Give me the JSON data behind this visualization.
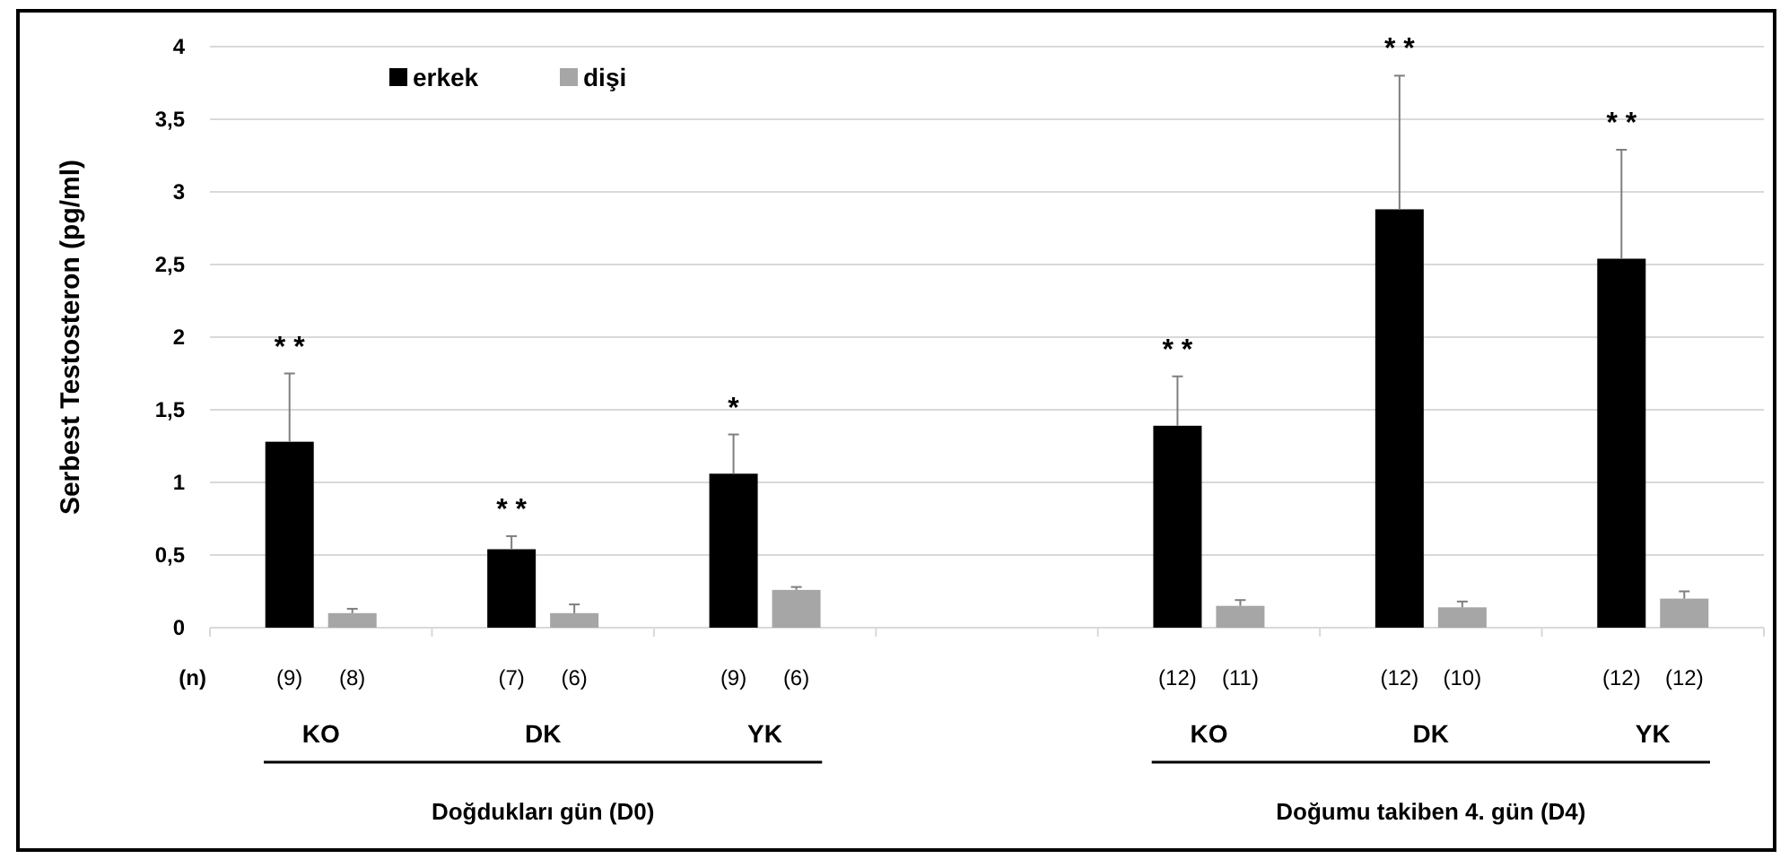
{
  "chart_data": {
    "type": "bar",
    "ylabel": "Serbest Testosteron (pg/ml)",
    "categories": [
      "KO",
      "DK",
      "YK",
      null,
      "KO",
      "DK",
      "YK"
    ],
    "series": [
      {
        "name": "erkek",
        "color": "#000000",
        "values": [
          1.28,
          0.54,
          1.06,
          null,
          1.39,
          2.88,
          2.54
        ],
        "errors": [
          [
            1.28,
            1.75
          ],
          [
            0.54,
            0.63
          ],
          [
            1.06,
            1.33
          ],
          null,
          [
            1.39,
            1.73
          ],
          [
            2.88,
            3.8
          ],
          [
            2.54,
            3.29
          ]
        ]
      },
      {
        "name": "dişi",
        "color": "#a6a6a6",
        "values": [
          0.1,
          0.1,
          0.26,
          null,
          0.15,
          0.14,
          0.2
        ],
        "errors": [
          [
            0.1,
            0.13
          ],
          [
            0.1,
            0.16
          ],
          [
            0.26,
            0.28
          ],
          null,
          [
            0.15,
            0.19
          ],
          [
            0.14,
            0.18
          ],
          [
            0.2,
            0.25
          ]
        ]
      }
    ],
    "ylim": [
      0,
      4
    ],
    "yticks": [
      0,
      {
        "value": 0.5,
        "label": "0,5"
      },
      1,
      {
        "value": 1.5,
        "label": "1,5"
      },
      2,
      {
        "value": 2.5,
        "label": "2,5"
      },
      3,
      {
        "value": 3.5,
        "label": "3,5"
      },
      4
    ],
    "grid": "y",
    "legend": "top left",
    "annotations": [
      "(n)",
      "(9)",
      "(8)",
      "(7)",
      "(6)",
      "(9)",
      "(6)",
      "(12)",
      "(11)",
      "(12)",
      "(10)",
      "(12)",
      "(12)",
      "* *",
      "* *",
      "*",
      "* *",
      "* *",
      "* *",
      "Doğdukları gün (D0)",
      "Doğumu takiben 4. gün (D4)"
    ]
  }
}
